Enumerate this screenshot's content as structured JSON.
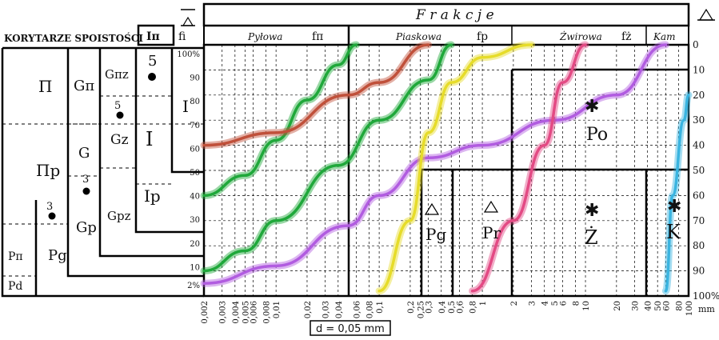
{
  "header": {
    "title": "F r a k c j e",
    "left_title": "KORYTARZE SPOISTOŚCI",
    "col_ip": "Iπ",
    "col_fi": "fi"
  },
  "fractions": [
    {
      "name": "Pyłowa",
      "symbol": "fπ"
    },
    {
      "name": "Piaskowa",
      "symbol": "fp"
    },
    {
      "name": "Żwirowa",
      "symbol": "fż"
    },
    {
      "name": "Kam",
      "symbol": ""
    }
  ],
  "corridors": {
    "c1": [
      "Π",
      "Πp",
      "Pπ",
      "Pd"
    ],
    "c2": [
      "Gπ",
      "G",
      "Gp",
      "Pg"
    ],
    "c3": [
      "Gπz",
      "Gz",
      "Gpz"
    ],
    "c4": [
      "I",
      "Ip"
    ],
    "numbers": [
      "5",
      "5",
      "3",
      "3"
    ]
  },
  "left_percent": {
    "ticks": [
      "100%",
      "90",
      "80",
      "70",
      "60",
      "50",
      "40",
      "30",
      "20",
      "10",
      "2%"
    ]
  },
  "right_percent": {
    "ticks": [
      "0",
      "10",
      "20",
      "30",
      "40",
      "50",
      "60",
      "70",
      "80",
      "90",
      "100%"
    ]
  },
  "x_ticks": [
    "0,002",
    "0,003",
    "0,004",
    "0,005",
    "0,006",
    "0,008",
    "0,01",
    "0,02",
    "0,03",
    "0,04",
    "0,06",
    "0,08",
    "0,1",
    "0,2",
    "0,25",
    "0,3",
    "0,4",
    "0,5",
    "0,6",
    "0,8",
    "1",
    "2",
    "3",
    "4",
    "5",
    "6",
    "8",
    "10",
    "20",
    "30",
    "40",
    "50",
    "60",
    "80",
    "100"
  ],
  "x_unit": "mm",
  "d_label": "d = 0,05 mm",
  "zones": {
    "po": "Po",
    "pg": "Pg",
    "pr": "Pr",
    "z": "Ż",
    "k": "K"
  },
  "colors": {
    "green": "#1fa83a",
    "red": "#c0503a",
    "purple": "#b15ce0",
    "yellow": "#e6dc2a",
    "pink": "#e34a84",
    "cyan": "#3ab4e0"
  },
  "chart_data": {
    "type": "line",
    "x_scale": "log",
    "xlabel": "mm",
    "xlim": [
      0.002,
      100
    ],
    "ylim": [
      0,
      100
    ],
    "series": [
      {
        "color": "green",
        "x": [
          0.002,
          0.005,
          0.01,
          0.02,
          0.04,
          0.06
        ],
        "y": [
          40,
          48,
          62,
          78,
          92,
          100
        ]
      },
      {
        "color": "green",
        "x": [
          0.002,
          0.005,
          0.01,
          0.04,
          0.1,
          0.3,
          0.5
        ],
        "y": [
          10,
          18,
          30,
          52,
          70,
          86,
          100
        ]
      },
      {
        "color": "red",
        "x": [
          0.002,
          0.01,
          0.05,
          0.1,
          0.3
        ],
        "y": [
          60,
          65,
          80,
          85,
          100
        ]
      },
      {
        "color": "purple",
        "x": [
          0.002,
          0.01,
          0.05,
          0.1,
          0.3,
          1,
          5,
          20,
          60
        ],
        "y": [
          5,
          12,
          28,
          40,
          55,
          60,
          70,
          80,
          100
        ]
      },
      {
        "color": "yellow",
        "x": [
          0.1,
          0.2,
          0.3,
          0.5,
          1,
          3
        ],
        "y": [
          2,
          30,
          65,
          85,
          95,
          100
        ]
      },
      {
        "color": "pink",
        "x": [
          0.8,
          2,
          4,
          6,
          10
        ],
        "y": [
          2,
          30,
          60,
          85,
          100
        ]
      },
      {
        "color": "cyan",
        "x": [
          60,
          70,
          90,
          100
        ],
        "y": [
          2,
          40,
          70,
          80
        ]
      }
    ]
  }
}
